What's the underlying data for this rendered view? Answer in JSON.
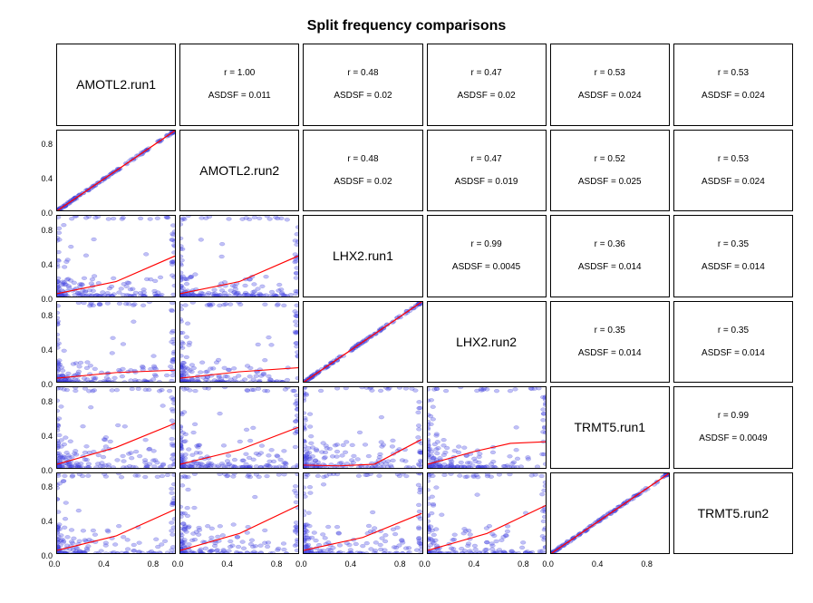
{
  "title": "Split frequency comparisons",
  "labels": [
    "AMOTL2.run1",
    "AMOTL2.run2",
    "LHX2.run1",
    "LHX2.run2",
    "TRMT5.run1",
    "TRMT5.run2"
  ],
  "axis": {
    "xlim": [
      0,
      1
    ],
    "ylim": [
      0,
      1
    ],
    "yticks": [
      0.0,
      0.4,
      0.8
    ],
    "ytick_labels": [
      "0.0",
      "0.4",
      "0.8"
    ],
    "xticks": [
      0.0,
      0.4,
      0.8
    ],
    "xtick_labels": [
      "0.0",
      "0.4",
      "0.8"
    ],
    "tick_fontsize": 9,
    "label_fontsize": 14,
    "stat_fontsize": 10,
    "title_fontsize": 16
  },
  "colors": {
    "point_fill": "#4a4ae8",
    "point_stroke": "#2a2ac0",
    "point_opacity": 0.35,
    "line": "#ff0000",
    "border": "#000000",
    "background": "#ffffff",
    "text": "#000000"
  },
  "stats": {
    "0_1": {
      "r": "1.00",
      "asdsf": "0.011"
    },
    "0_2": {
      "r": "0.48",
      "asdsf": "0.02"
    },
    "0_3": {
      "r": "0.47",
      "asdsf": "0.02"
    },
    "0_4": {
      "r": "0.53",
      "asdsf": "0.024"
    },
    "0_5": {
      "r": "0.53",
      "asdsf": "0.024"
    },
    "1_2": {
      "r": "0.48",
      "asdsf": "0.02"
    },
    "1_3": {
      "r": "0.47",
      "asdsf": "0.019"
    },
    "1_4": {
      "r": "0.52",
      "asdsf": "0.025"
    },
    "1_5": {
      "r": "0.53",
      "asdsf": "0.024"
    },
    "2_3": {
      "r": "0.99",
      "asdsf": "0.0045"
    },
    "2_4": {
      "r": "0.36",
      "asdsf": "0.014"
    },
    "2_5": {
      "r": "0.35",
      "asdsf": "0.014"
    },
    "3_4": {
      "r": "0.35",
      "asdsf": "0.014"
    },
    "3_5": {
      "r": "0.35",
      "asdsf": "0.014"
    },
    "4_5": {
      "r": "0.99",
      "asdsf": "0.0049"
    }
  },
  "plots": {
    "1_0": {
      "pattern": "diag_tight",
      "line": [
        [
          0,
          0
        ],
        [
          1,
          1
        ]
      ]
    },
    "2_0": {
      "pattern": "corner_low",
      "line": [
        [
          0,
          0.03
        ],
        [
          0.5,
          0.18
        ],
        [
          1,
          0.5
        ]
      ]
    },
    "2_1": {
      "pattern": "corner_low",
      "line": [
        [
          0,
          0.03
        ],
        [
          0.5,
          0.18
        ],
        [
          1,
          0.5
        ]
      ]
    },
    "3_0": {
      "pattern": "corner_low",
      "line": [
        [
          0,
          0.05
        ],
        [
          0.5,
          0.12
        ],
        [
          1,
          0.15
        ]
      ]
    },
    "3_1": {
      "pattern": "corner_low",
      "line": [
        [
          0,
          0.05
        ],
        [
          0.5,
          0.13
        ],
        [
          1,
          0.18
        ]
      ]
    },
    "3_2": {
      "pattern": "diag_tight",
      "line": [
        [
          0,
          0
        ],
        [
          1,
          1
        ]
      ]
    },
    "4_0": {
      "pattern": "corner_spread",
      "line": [
        [
          0,
          0.04
        ],
        [
          0.5,
          0.25
        ],
        [
          1,
          0.55
        ]
      ]
    },
    "4_1": {
      "pattern": "corner_spread",
      "line": [
        [
          0,
          0.04
        ],
        [
          0.5,
          0.22
        ],
        [
          1,
          0.5
        ]
      ]
    },
    "4_2": {
      "pattern": "corner_spread",
      "line": [
        [
          0,
          0.03
        ],
        [
          0.3,
          0.02
        ],
        [
          0.6,
          0.04
        ],
        [
          1,
          0.35
        ]
      ]
    },
    "4_3": {
      "pattern": "corner_spread",
      "line": [
        [
          0,
          0.04
        ],
        [
          0.4,
          0.2
        ],
        [
          0.7,
          0.3
        ],
        [
          1,
          0.32
        ]
      ]
    },
    "5_0": {
      "pattern": "corner_spread",
      "line": [
        [
          0,
          0.04
        ],
        [
          0.5,
          0.22
        ],
        [
          1,
          0.55
        ]
      ]
    },
    "5_1": {
      "pattern": "corner_spread",
      "line": [
        [
          0,
          0.04
        ],
        [
          0.5,
          0.25
        ],
        [
          1,
          0.6
        ]
      ]
    },
    "5_2": {
      "pattern": "corner_spread",
      "line": [
        [
          0,
          0.04
        ],
        [
          0.5,
          0.2
        ],
        [
          1,
          0.5
        ]
      ]
    },
    "5_3": {
      "pattern": "corner_spread",
      "line": [
        [
          0,
          0.04
        ],
        [
          0.5,
          0.25
        ],
        [
          1,
          0.6
        ]
      ]
    },
    "5_4": {
      "pattern": "diag_tight",
      "line": [
        [
          0,
          0
        ],
        [
          1,
          1
        ]
      ]
    }
  },
  "point_style": {
    "radius": 2.2,
    "n_diag": 120,
    "n_corner": 140,
    "corner_extra_edge": 18
  },
  "stat_format": {
    "r_prefix": "r = ",
    "asdsf_prefix": "ASDSF = "
  }
}
